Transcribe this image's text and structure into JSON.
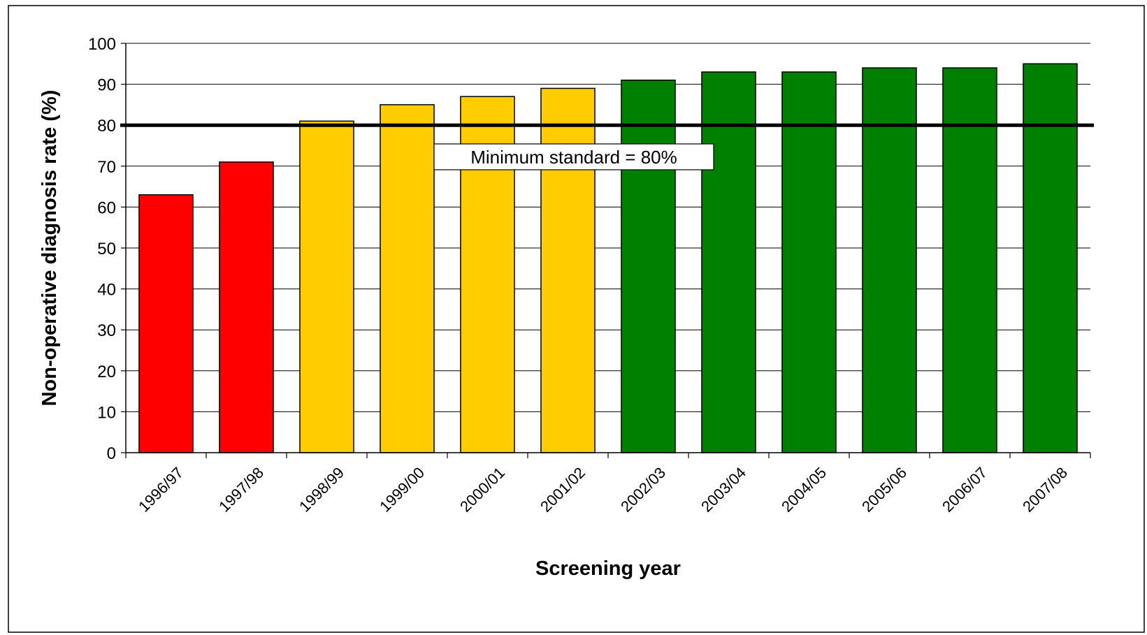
{
  "chart_data": {
    "type": "bar",
    "title": "",
    "xlabel": "Screening year",
    "ylabel": "Non-operative diagnosis rate (%)",
    "ylim": [
      0,
      100
    ],
    "yticks": [
      "0",
      "10",
      "20",
      "30",
      "40",
      "50",
      "60",
      "70",
      "80",
      "90",
      "100"
    ],
    "categories": [
      "1996/97",
      "1997/98",
      "1998/99",
      "1999/00",
      "2000/01",
      "2001/02",
      "2002/03",
      "2003/04",
      "2004/05",
      "2005/06",
      "2006/07",
      "2007/08"
    ],
    "values": [
      63,
      71,
      81,
      85,
      87,
      89,
      91,
      93,
      93,
      94,
      94,
      95
    ],
    "bar_colors": [
      "#ff0000",
      "#ff0000",
      "#ffcc00",
      "#ffcc00",
      "#ffcc00",
      "#ffcc00",
      "#008000",
      "#008000",
      "#008000",
      "#008000",
      "#008000",
      "#008000"
    ],
    "grid": true,
    "reference_line": {
      "value": 80,
      "label": "Minimum standard = 80%",
      "color": "#000000"
    }
  }
}
